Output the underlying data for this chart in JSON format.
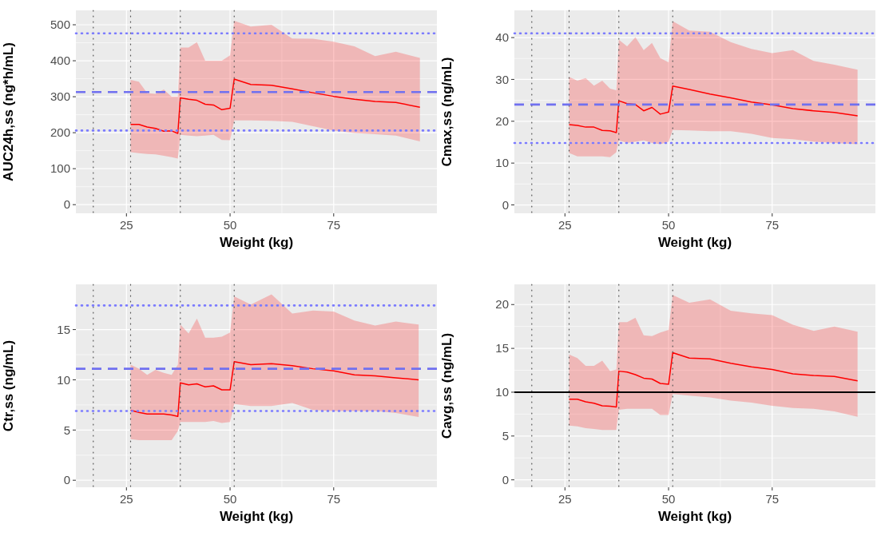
{
  "chart_data": [
    {
      "type": "line",
      "xlabel": "Weight (kg)",
      "ylabel": "AUC24h,ss (ng*h/mL)",
      "xlim": [
        12.8,
        99.9
      ],
      "ylim": [
        -24,
        540
      ],
      "xticks": [
        25,
        50,
        75
      ],
      "yticks": [
        0,
        100,
        200,
        300,
        400,
        500
      ],
      "grid": true,
      "x": [
        26,
        28,
        30,
        32,
        34,
        35.9,
        37.4,
        38,
        40,
        42,
        44,
        46,
        48,
        50,
        51,
        55,
        60,
        65,
        70,
        75,
        80,
        85,
        90,
        95.8
      ],
      "series": [
        {
          "color": "#ff0000",
          "values": [
            223,
            223,
            216,
            212,
            204,
            205,
            198,
            297,
            293,
            290,
            279,
            277,
            264,
            268,
            349,
            334,
            332,
            322,
            311,
            301,
            293,
            287,
            284,
            271
          ],
          "upper": [
            347,
            342,
            310,
            308,
            320,
            300,
            300,
            437,
            437,
            452,
            400,
            400,
            400,
            415,
            511,
            495,
            500,
            462,
            461,
            453,
            440,
            413,
            425,
            408
          ],
          "lower": [
            146,
            143,
            141,
            140,
            136,
            132,
            128,
            194,
            192,
            190,
            192,
            194,
            180,
            179,
            234,
            234,
            233,
            230,
            218,
            206,
            199,
            196,
            192,
            176
          ]
        }
      ],
      "ref_lines": [
        {
          "axis": "x",
          "value": 17,
          "color": "#555555",
          "line_style": "dotted"
        },
        {
          "axis": "x",
          "value": 26,
          "color": "#555555",
          "line_style": "dotted"
        },
        {
          "axis": "x",
          "value": 38,
          "color": "#555555",
          "line_style": "dotted"
        },
        {
          "axis": "x",
          "value": 51,
          "color": "#555555",
          "line_style": "dotted"
        },
        {
          "axis": "y",
          "value": 476,
          "color": "#7b7bff",
          "line_style": "dotted"
        },
        {
          "axis": "y",
          "value": 313,
          "color": "#7070f0",
          "line_style": "dashed"
        },
        {
          "axis": "y",
          "value": 206,
          "color": "#7b7bff",
          "line_style": "dotted"
        }
      ]
    },
    {
      "type": "line",
      "xlabel": "Weight (kg)",
      "ylabel": "Cmax,ss (ng/mL)",
      "xlim": [
        12.8,
        99.9
      ],
      "ylim": [
        -2,
        46.5
      ],
      "xticks": [
        25,
        50,
        75
      ],
      "yticks": [
        0,
        10,
        20,
        30,
        40
      ],
      "grid": true,
      "x": [
        26,
        28,
        30,
        32,
        34,
        35.9,
        37.4,
        38,
        40,
        42,
        44,
        46,
        48,
        50,
        51,
        55,
        60,
        65,
        70,
        75,
        80,
        85,
        90,
        95.6
      ],
      "series": [
        {
          "color": "#ff0000",
          "values": [
            19.2,
            19.0,
            18.6,
            18.6,
            17.8,
            17.7,
            17.3,
            24.9,
            24.2,
            24.0,
            22.5,
            23.3,
            21.7,
            22.2,
            28.4,
            27.6,
            26.5,
            25.6,
            24.6,
            23.9,
            23.0,
            22.5,
            22.1,
            21.3
          ],
          "upper": [
            30.6,
            29.7,
            30.3,
            28.5,
            29.7,
            27.8,
            27.4,
            39.5,
            37.9,
            40.1,
            37.0,
            38.7,
            35.1,
            34.1,
            43.9,
            41.7,
            41.4,
            38.9,
            37.3,
            36.3,
            37.0,
            34.4,
            33.5,
            32.3
          ],
          "lower": [
            12.4,
            11.6,
            11.6,
            11.6,
            11.6,
            11.4,
            12.6,
            15.4,
            14.8,
            15.1,
            15.4,
            14.8,
            14.5,
            15.1,
            17.9,
            17.8,
            17.6,
            17.6,
            17.0,
            16.0,
            15.7,
            15.1,
            14.8,
            14.5
          ]
        }
      ],
      "ref_lines": [
        {
          "axis": "x",
          "value": 17,
          "color": "#555555",
          "line_style": "dotted"
        },
        {
          "axis": "x",
          "value": 26,
          "color": "#555555",
          "line_style": "dotted"
        },
        {
          "axis": "x",
          "value": 38,
          "color": "#555555",
          "line_style": "dotted"
        },
        {
          "axis": "x",
          "value": 51,
          "color": "#555555",
          "line_style": "dotted"
        },
        {
          "axis": "y",
          "value": 41,
          "color": "#7b7bff",
          "line_style": "dotted"
        },
        {
          "axis": "y",
          "value": 24,
          "color": "#7070f0",
          "line_style": "dashed"
        },
        {
          "axis": "y",
          "value": 14.8,
          "color": "#7b7bff",
          "line_style": "dotted"
        }
      ]
    },
    {
      "type": "line",
      "xlabel": "Weight (kg)",
      "ylabel": "Ctr,ss (ng/mL)",
      "xlim": [
        12.8,
        99.9
      ],
      "ylim": [
        -0.7,
        19.5
      ],
      "xticks": [
        25,
        50,
        75
      ],
      "yticks": [
        0,
        5,
        10,
        15
      ],
      "grid": true,
      "x": [
        26,
        28,
        30,
        32,
        34,
        35.9,
        37.4,
        38,
        40,
        42,
        44,
        46,
        48,
        50,
        51,
        55,
        60,
        65,
        70,
        75,
        80,
        85,
        90,
        95.5
      ],
      "series": [
        {
          "color": "#ff0000",
          "values": [
            6.97,
            6.76,
            6.6,
            6.6,
            6.6,
            6.5,
            6.36,
            9.7,
            9.5,
            9.6,
            9.3,
            9.4,
            9.0,
            9.0,
            11.8,
            11.5,
            11.6,
            11.4,
            11.1,
            10.9,
            10.5,
            10.4,
            10.2,
            10.0
          ],
          "upper": [
            11.5,
            11.1,
            10.5,
            11.0,
            10.7,
            10.5,
            11.5,
            15.5,
            14.6,
            16.1,
            14.2,
            14.2,
            14.3,
            14.7,
            18.3,
            17.5,
            18.5,
            16.6,
            16.9,
            16.8,
            15.9,
            15.4,
            15.8,
            15.5
          ],
          "lower": [
            4.1,
            4.0,
            4.0,
            4.0,
            4.0,
            4.0,
            4.9,
            5.8,
            5.8,
            5.8,
            5.8,
            5.9,
            5.7,
            5.8,
            7.6,
            7.4,
            7.4,
            7.7,
            7.0,
            6.9,
            6.9,
            6.9,
            6.7,
            6.3
          ]
        }
      ],
      "ref_lines": [
        {
          "axis": "x",
          "value": 17,
          "color": "#555555",
          "line_style": "dotted"
        },
        {
          "axis": "x",
          "value": 26,
          "color": "#555555",
          "line_style": "dotted"
        },
        {
          "axis": "x",
          "value": 38,
          "color": "#555555",
          "line_style": "dotted"
        },
        {
          "axis": "x",
          "value": 51,
          "color": "#555555",
          "line_style": "dotted"
        },
        {
          "axis": "y",
          "value": 17.4,
          "color": "#7b7bff",
          "line_style": "dotted"
        },
        {
          "axis": "y",
          "value": 11.1,
          "color": "#7070f0",
          "line_style": "dashed"
        },
        {
          "axis": "y",
          "value": 6.9,
          "color": "#7b7bff",
          "line_style": "dotted"
        }
      ]
    },
    {
      "type": "line",
      "xlabel": "Weight (kg)",
      "ylabel": "Cavg,ss (ng/mL)",
      "xlim": [
        12.8,
        99.9
      ],
      "ylim": [
        -0.85,
        22.3
      ],
      "xticks": [
        25,
        50,
        75
      ],
      "yticks": [
        0,
        5,
        10,
        15,
        20
      ],
      "grid": true,
      "x": [
        26,
        28,
        30,
        32,
        34,
        35.9,
        37.4,
        38,
        40,
        42,
        44,
        46,
        48,
        50,
        51,
        55,
        60,
        65,
        70,
        75,
        80,
        85,
        90,
        95.6
      ],
      "series": [
        {
          "color": "#ff0000",
          "values": [
            9.2,
            9.2,
            8.9,
            8.75,
            8.45,
            8.4,
            8.3,
            12.4,
            12.3,
            12.0,
            11.6,
            11.5,
            11.0,
            10.9,
            14.5,
            13.9,
            13.8,
            13.3,
            12.9,
            12.6,
            12.1,
            11.9,
            11.8,
            11.3
          ],
          "upper": [
            14.3,
            13.9,
            13.0,
            13.0,
            13.6,
            12.4,
            12.6,
            18.0,
            18.0,
            18.5,
            16.5,
            16.4,
            16.8,
            17.1,
            21.1,
            20.2,
            20.6,
            19.3,
            19.0,
            18.8,
            17.7,
            17.0,
            17.5,
            16.9
          ],
          "lower": [
            6.2,
            6.1,
            5.9,
            5.8,
            5.7,
            5.7,
            5.7,
            8.0,
            8.1,
            8.1,
            8.1,
            8.1,
            7.4,
            7.4,
            9.8,
            9.6,
            9.4,
            9.05,
            8.8,
            8.45,
            8.2,
            8.1,
            7.8,
            7.2
          ]
        }
      ],
      "ref_lines": [
        {
          "axis": "x",
          "value": 17,
          "color": "#555555",
          "line_style": "dotted"
        },
        {
          "axis": "x",
          "value": 26,
          "color": "#555555",
          "line_style": "dotted"
        },
        {
          "axis": "x",
          "value": 38,
          "color": "#555555",
          "line_style": "dotted"
        },
        {
          "axis": "x",
          "value": 51,
          "color": "#555555",
          "line_style": "dotted"
        },
        {
          "axis": "y",
          "value": 10,
          "color": "#000000",
          "line_style": "solid"
        }
      ]
    }
  ]
}
